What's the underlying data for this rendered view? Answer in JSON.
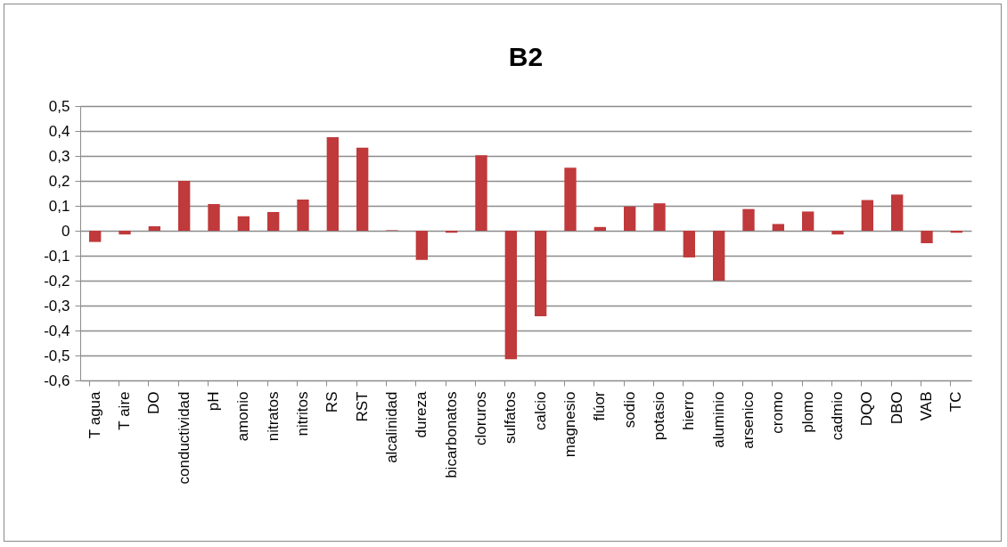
{
  "chart_data": {
    "type": "bar",
    "title": "B2",
    "categories": [
      "T agua",
      "T aire",
      "DO",
      "conductividad",
      "pH",
      "amonio",
      "nitratos",
      "nitritos",
      "RS",
      "RST",
      "alcalinidad",
      "dureza",
      "bicarbonatos",
      "cloruros",
      "sulfatos",
      "calcio",
      "magnesio",
      "flúor",
      "sodio",
      "potasio",
      "hierro",
      "aluminio",
      "arsenico",
      "cromo",
      "plomo",
      "cadmio",
      "DQO",
      "DBO",
      "VAB",
      "TC"
    ],
    "values": [
      -0.045,
      -0.015,
      0.018,
      0.2,
      0.107,
      0.058,
      0.075,
      0.125,
      0.375,
      0.333,
      0.002,
      -0.117,
      -0.008,
      0.303,
      -0.515,
      -0.343,
      0.253,
      0.015,
      0.097,
      0.11,
      -0.107,
      -0.2,
      0.087,
      0.027,
      0.077,
      -0.015,
      0.123,
      0.145,
      -0.05,
      -0.008
    ],
    "color": "#c0393b",
    "ylim": [
      -0.6,
      0.5
    ],
    "yticks": [
      {
        "value": -0.6,
        "label": "-0,6"
      },
      {
        "value": -0.5,
        "label": "-0,5"
      },
      {
        "value": -0.4,
        "label": "-0,4"
      },
      {
        "value": -0.3,
        "label": "-0,3"
      },
      {
        "value": -0.2,
        "label": "-0,2"
      },
      {
        "value": -0.1,
        "label": "-0,1"
      },
      0,
      {
        "value": 0.1,
        "label": "0,1"
      },
      {
        "value": 0.2,
        "label": "0,2"
      },
      {
        "value": 0.3,
        "label": "0,3"
      },
      {
        "value": 0.4,
        "label": "0,4"
      },
      {
        "value": 0.5,
        "label": "0,5"
      }
    ],
    "grid": "y"
  }
}
